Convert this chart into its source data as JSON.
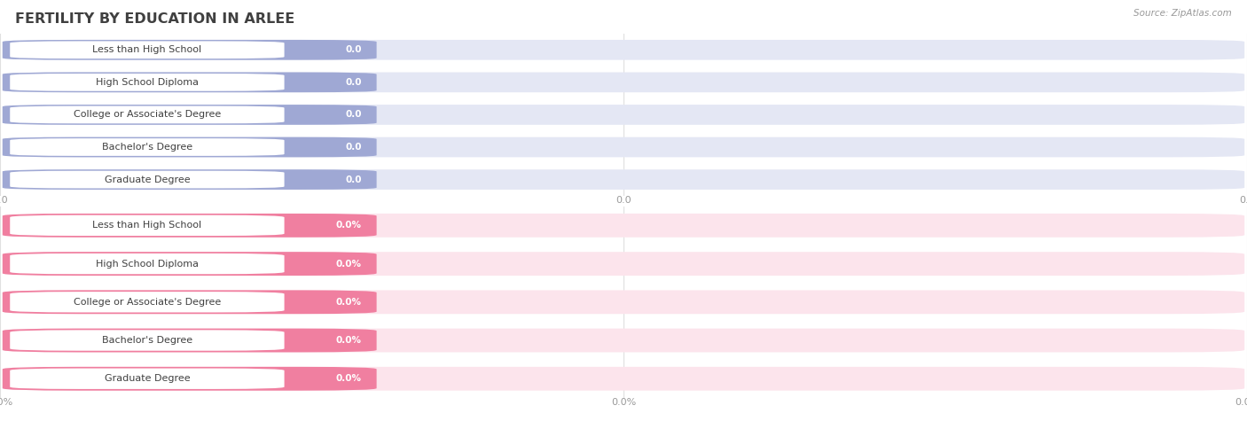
{
  "title": "FERTILITY BY EDUCATION IN ARLEE",
  "source": "Source: ZipAtlas.com",
  "categories": [
    "Less than High School",
    "High School Diploma",
    "College or Associate's Degree",
    "Bachelor's Degree",
    "Graduate Degree"
  ],
  "top_values": [
    0.0,
    0.0,
    0.0,
    0.0,
    0.0
  ],
  "bottom_values": [
    0.0,
    0.0,
    0.0,
    0.0,
    0.0
  ],
  "top_bar_color": "#9fa8d4",
  "top_bg_color": "#e4e7f4",
  "top_pill_bg": "#ffffff",
  "bottom_bar_color": "#f07fa0",
  "bottom_bg_color": "#fce4ec",
  "bottom_pill_bg": "#ffffff",
  "plot_bg": "#ffffff",
  "title_color": "#404040",
  "label_color": "#404040",
  "source_color": "#999999",
  "tick_color": "#999999",
  "grid_color": "#e0e0e0",
  "value_label_color": "#ffffff",
  "figsize": [
    14.06,
    4.75
  ],
  "dpi": 100
}
